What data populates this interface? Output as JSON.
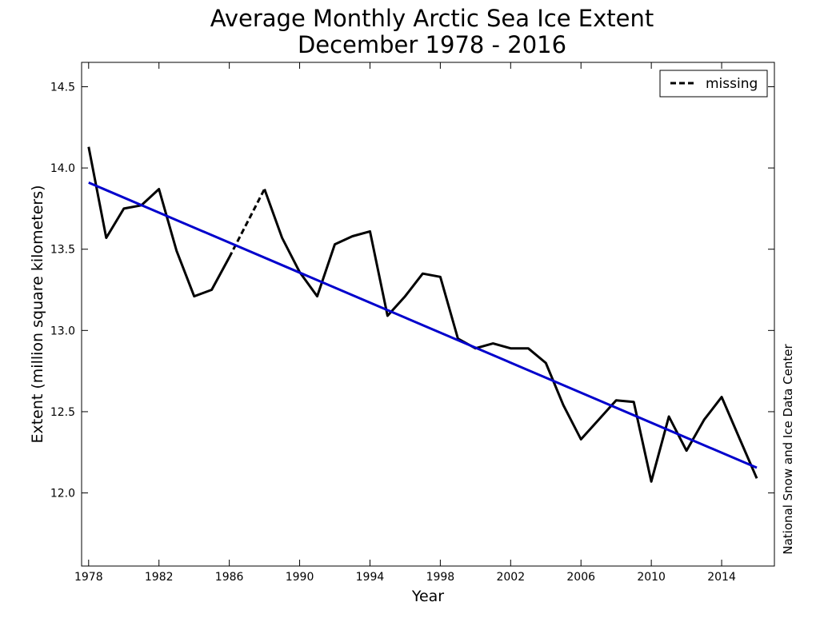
{
  "chart_data": {
    "type": "line",
    "title": "Average Monthly Arctic Sea Ice Extent",
    "subtitle": "December 1978 - 2016",
    "xlabel": "Year",
    "ylabel": "Extent (million square kilometers)",
    "credit": "National Snow and Ice Data Center",
    "xlim": [
      1977.6,
      2017.0
    ],
    "ylim": [
      11.55,
      14.65
    ],
    "x_ticks": [
      1978,
      1982,
      1986,
      1990,
      1994,
      1998,
      2002,
      2006,
      2010,
      2014
    ],
    "y_ticks": [
      12.0,
      12.5,
      13.0,
      13.5,
      14.0,
      14.5
    ],
    "y_tick_labels": [
      "12.0",
      "12.5",
      "13.0",
      "13.5",
      "14.0",
      "14.5"
    ],
    "grid": false,
    "legend": {
      "position": "top-right",
      "entries": [
        {
          "label": "missing",
          "style": "dashed",
          "color": "#000000"
        }
      ]
    },
    "series": [
      {
        "color": "#000000",
        "x": [
          1978,
          1979,
          1980,
          1981,
          1982,
          1983,
          1984,
          1985,
          1986,
          1987,
          1988,
          1989,
          1990,
          1991,
          1992,
          1993,
          1994,
          1995,
          1996,
          1997,
          1998,
          1999,
          2000,
          2001,
          2002,
          2003,
          2004,
          2005,
          2006,
          2007,
          2008,
          2009,
          2010,
          2011,
          2012,
          2013,
          2014,
          2015,
          2016
        ],
        "y": [
          14.13,
          13.57,
          13.75,
          13.77,
          13.87,
          13.49,
          13.21,
          13.25,
          13.45,
          null,
          13.87,
          13.57,
          13.36,
          13.21,
          13.53,
          13.58,
          13.61,
          13.09,
          13.21,
          13.35,
          13.33,
          12.95,
          12.89,
          12.92,
          12.89,
          12.89,
          12.8,
          12.54,
          12.33,
          12.45,
          12.57,
          12.56,
          12.07,
          12.47,
          12.26,
          12.45,
          12.59,
          12.34,
          12.09
        ]
      },
      {
        "name": "missing",
        "style": "dashed",
        "color": "#000000",
        "x": [
          1986,
          1987,
          1988
        ],
        "y": [
          13.45,
          13.66,
          13.87
        ]
      },
      {
        "style": "trend",
        "color": "#0000cc",
        "x": [
          1978,
          2016
        ],
        "y": [
          13.91,
          12.155
        ]
      }
    ]
  }
}
